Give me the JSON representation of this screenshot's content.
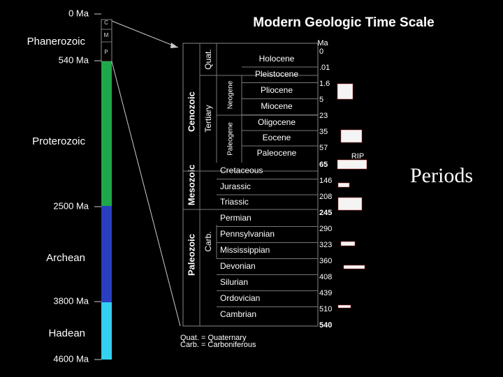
{
  "title": "Modern Geologic Time Scale",
  "eons": [
    "Phanerozoic",
    "Proterozoic",
    "Archean",
    "Hadean"
  ],
  "age_marks": [
    "0 Ma",
    "540 Ma",
    "2500 Ma",
    "3800 Ma",
    "4600 Ma"
  ],
  "eras_small": [
    "C",
    "M",
    "P"
  ],
  "eras": [
    "Cenozoic",
    "Mesozoic",
    "Paleozoic"
  ],
  "periods": [
    "Quat.",
    "Tertiary",
    "Carb."
  ],
  "subperiods": [
    "Neogene",
    "Paleogene"
  ],
  "epochs": [
    "Holocene",
    "Pleistocene",
    "Pliocene",
    "Miocene",
    "Oligocene",
    "Eocene",
    "Paleocene",
    "Cretaceous",
    "Jurassic",
    "Triassic",
    "Permian",
    "Pennsylvanian",
    "Mississippian",
    "Devonian",
    "Silurian",
    "Ordovician",
    "Cambrian"
  ],
  "ages_header": "Ma",
  "ages": [
    "0",
    ".01",
    "1.6",
    "5",
    "23",
    "35",
    "57",
    "65",
    "146",
    "208",
    "245",
    "290",
    "323",
    "360",
    "408",
    "439",
    "510",
    "540"
  ],
  "rip": "RIP",
  "periods_label": "Periods",
  "notes": [
    "Quat. = Quaternary",
    "Carb. = Carboniferous"
  ]
}
